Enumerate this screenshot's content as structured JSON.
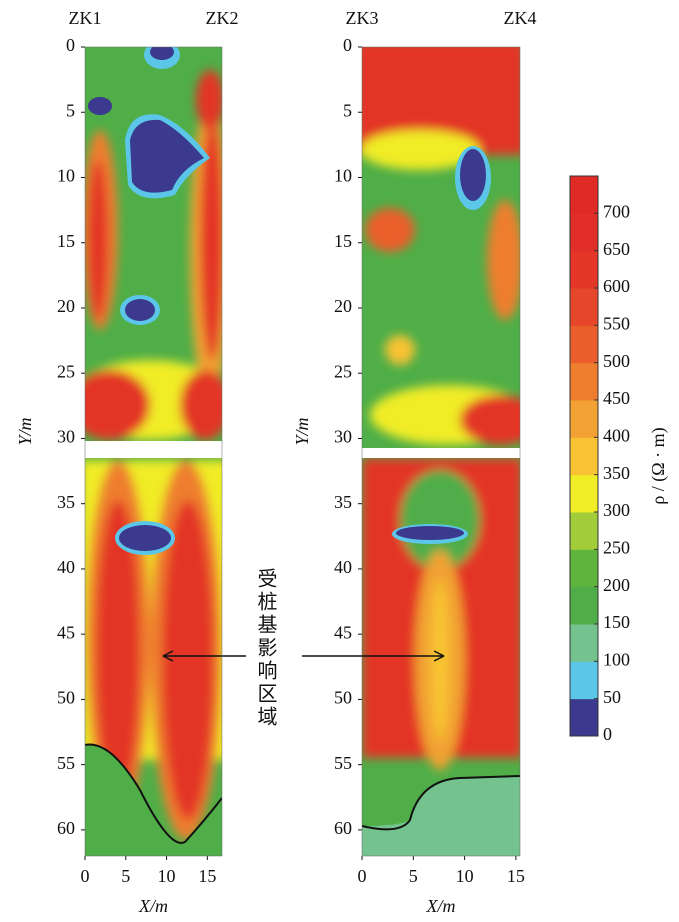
{
  "chart_data": [
    {
      "type": "heatmap",
      "top_labels": [
        "ZK1",
        "ZK2"
      ],
      "x_label": "X/m",
      "y_label": "Y/m",
      "xlim": [
        0,
        16.8
      ],
      "ylim": [
        0,
        62
      ],
      "xticks": [
        0,
        5,
        10,
        15
      ],
      "yticks": [
        0,
        5,
        10,
        15,
        20,
        25,
        30,
        35,
        40,
        45,
        50,
        55,
        60
      ]
    },
    {
      "type": "heatmap",
      "top_labels": [
        "ZK3",
        "ZK4"
      ],
      "x_label": "X/m",
      "y_label": "Y/m",
      "xlim": [
        0,
        15.4
      ],
      "ylim": [
        0,
        62
      ],
      "xticks": [
        0,
        5,
        10,
        15
      ],
      "yticks": [
        0,
        5,
        10,
        15,
        20,
        25,
        30,
        35,
        40,
        45,
        50,
        55,
        60
      ]
    },
    {
      "type": "colorbar",
      "label": "ρ / (Ω · m)",
      "clim": [
        0,
        750
      ],
      "colors": [
        "#3b3a8e",
        "#5cc6e8",
        "#74c28e",
        "#4fae48",
        "#5fb43e",
        "#a2cc3a",
        "#f0ec26",
        "#f8c232",
        "#f2a232",
        "#ee7e2e",
        "#ea5e2c",
        "#e6462a",
        "#e33628",
        "#e12e28",
        "#df2a26"
      ],
      "cticks": [
        0,
        50,
        100,
        150,
        200,
        250,
        300,
        350,
        400,
        450,
        500,
        550,
        600,
        650,
        700
      ]
    }
  ],
  "annotation": "受桩基影响区域"
}
